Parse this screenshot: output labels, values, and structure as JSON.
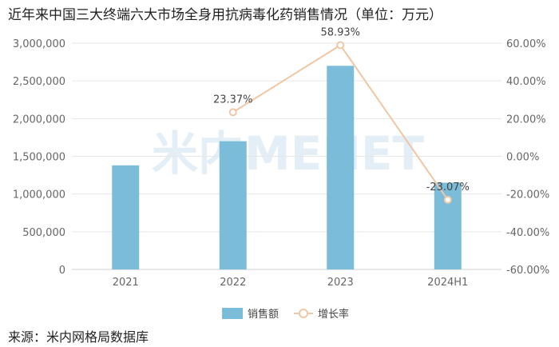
{
  "title": "近年来中国三大终端六大市场全身用抗病毒化药销售情况（单位：万元）",
  "source": "来源：米内网格局数据库",
  "watermark": "米内MENET",
  "colors": {
    "bar": "#7bbcd9",
    "line": "#efc7a4",
    "grid": "#e6e6e6"
  },
  "chart_data": {
    "type": "bar",
    "categories": [
      "2021",
      "2022",
      "2023",
      "2024H1"
    ],
    "series": [
      {
        "name": "销售额",
        "type": "bar",
        "axis": "left",
        "values": [
          1380000,
          1700000,
          2700000,
          1150000
        ]
      },
      {
        "name": "增长率",
        "type": "line",
        "axis": "right",
        "values": [
          null,
          23.37,
          58.93,
          -23.07
        ],
        "labels": [
          "",
          "23.37%",
          "58.93%",
          "-23.07%"
        ]
      }
    ],
    "y_left": {
      "ylim": [
        0,
        3000000
      ],
      "ticks": [
        "0",
        "500,000",
        "1,000,000",
        "1,500,000",
        "2,000,000",
        "2,500,000",
        "3,000,000"
      ]
    },
    "y_right": {
      "ylim": [
        -60,
        60
      ],
      "ticks": [
        "-60.00%",
        "-40.00%",
        "-20.00%",
        "0.00%",
        "20.00%",
        "40.00%",
        "60.00%"
      ]
    },
    "grid": true,
    "legend": "bottom-center"
  }
}
